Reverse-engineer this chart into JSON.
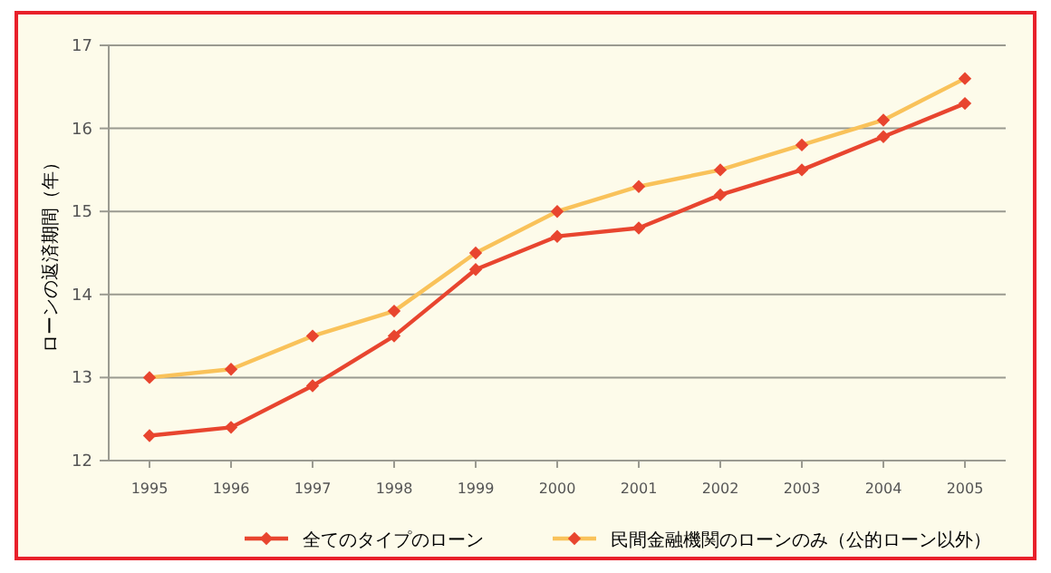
{
  "chart_data": {
    "type": "line",
    "ylabel": "ローンの返済期間（年）",
    "categories": [
      "1995",
      "1996",
      "1997",
      "1998",
      "1999",
      "2000",
      "2001",
      "2002",
      "2003",
      "2004",
      "2005"
    ],
    "series": [
      {
        "name": "全てのタイプのローン",
        "color": "#e8452f",
        "values": [
          12.3,
          12.4,
          12.9,
          13.5,
          14.3,
          14.7,
          14.8,
          15.2,
          15.5,
          15.9,
          16.3
        ]
      },
      {
        "name": "民間金融機関のローンのみ（公的ローン以外）",
        "color": "#f9c25a",
        "values": [
          13.0,
          13.1,
          13.5,
          13.8,
          14.5,
          15.0,
          15.3,
          15.5,
          15.8,
          16.1,
          16.6
        ]
      }
    ],
    "ylim": [
      12,
      17
    ],
    "yticks": [
      12,
      13,
      14,
      15,
      16,
      17
    ],
    "grid": "y",
    "legend": "bottom",
    "marker": "diamond"
  }
}
